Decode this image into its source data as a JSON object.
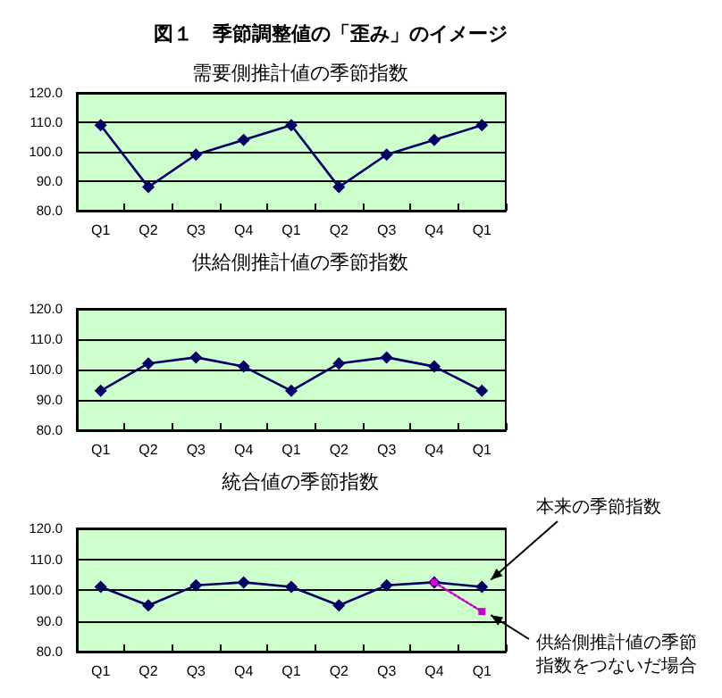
{
  "chart_data": [
    {
      "type": "line",
      "title": "図１　季節調整値の「歪み」のイメージ",
      "subtitle": "需要側推計値の季節指数",
      "categories": [
        "Q1",
        "Q2",
        "Q3",
        "Q4",
        "Q1",
        "Q2",
        "Q3",
        "Q4",
        "Q1"
      ],
      "series": [
        {
          "color": "#000066",
          "values": [
            109,
            88,
            99,
            104,
            109,
            88,
            99,
            104,
            109
          ]
        }
      ],
      "ylim": [
        80,
        120
      ],
      "yticks": [
        {
          "value": 80,
          "label": "80.0"
        },
        {
          "value": 90,
          "label": "90.0"
        },
        {
          "value": 100,
          "label": "100.0"
        },
        {
          "value": 110,
          "label": "110.0"
        },
        {
          "value": 120,
          "label": "120.0"
        }
      ],
      "grid": "y",
      "marker": "diamond",
      "line_style": "solid"
    },
    {
      "type": "line",
      "title": "供給側推計値の季節指数",
      "categories": [
        "Q1",
        "Q2",
        "Q3",
        "Q4",
        "Q1",
        "Q2",
        "Q3",
        "Q4",
        "Q1"
      ],
      "series": [
        {
          "color": "#000066",
          "values": [
            93,
            102,
            104,
            101,
            93,
            102,
            104,
            101,
            93
          ]
        }
      ],
      "ylim": [
        80,
        120
      ],
      "yticks": [
        {
          "value": 80,
          "label": "80.0"
        },
        {
          "value": 90,
          "label": "90.0"
        },
        {
          "value": 100,
          "label": "100.0"
        },
        {
          "value": 110,
          "label": "110.0"
        },
        {
          "value": 120,
          "label": "120.0"
        }
      ],
      "grid": "y",
      "marker": "diamond",
      "line_style": "solid"
    },
    {
      "type": "line",
      "title": "統合値の季節指数",
      "categories": [
        "Q1",
        "Q2",
        "Q3",
        "Q4",
        "Q1",
        "Q2",
        "Q3",
        "Q4",
        "Q1"
      ],
      "series": [
        {
          "color": "#000066",
          "values": [
            101,
            95,
            101.5,
            102.5,
            101,
            95,
            101.5,
            102.5,
            101
          ]
        },
        {
          "color": "#cc00cc",
          "values": [
            null,
            null,
            null,
            null,
            null,
            null,
            null,
            102.5,
            93
          ],
          "marker": "square",
          "line_style": "dotted"
        }
      ],
      "ylim": [
        80,
        120
      ],
      "yticks": [
        {
          "value": 80,
          "label": "80.0"
        },
        {
          "value": 90,
          "label": "90.0"
        },
        {
          "value": 100,
          "label": "100.0"
        },
        {
          "value": 110,
          "label": "110.0"
        },
        {
          "value": 120,
          "label": "120.0"
        }
      ],
      "grid": "y",
      "marker": "diamond",
      "line_style": "solid",
      "annotations": [
        "本来の季節指数",
        "供給側推計値の季節指数をつないだ場合"
      ]
    }
  ]
}
